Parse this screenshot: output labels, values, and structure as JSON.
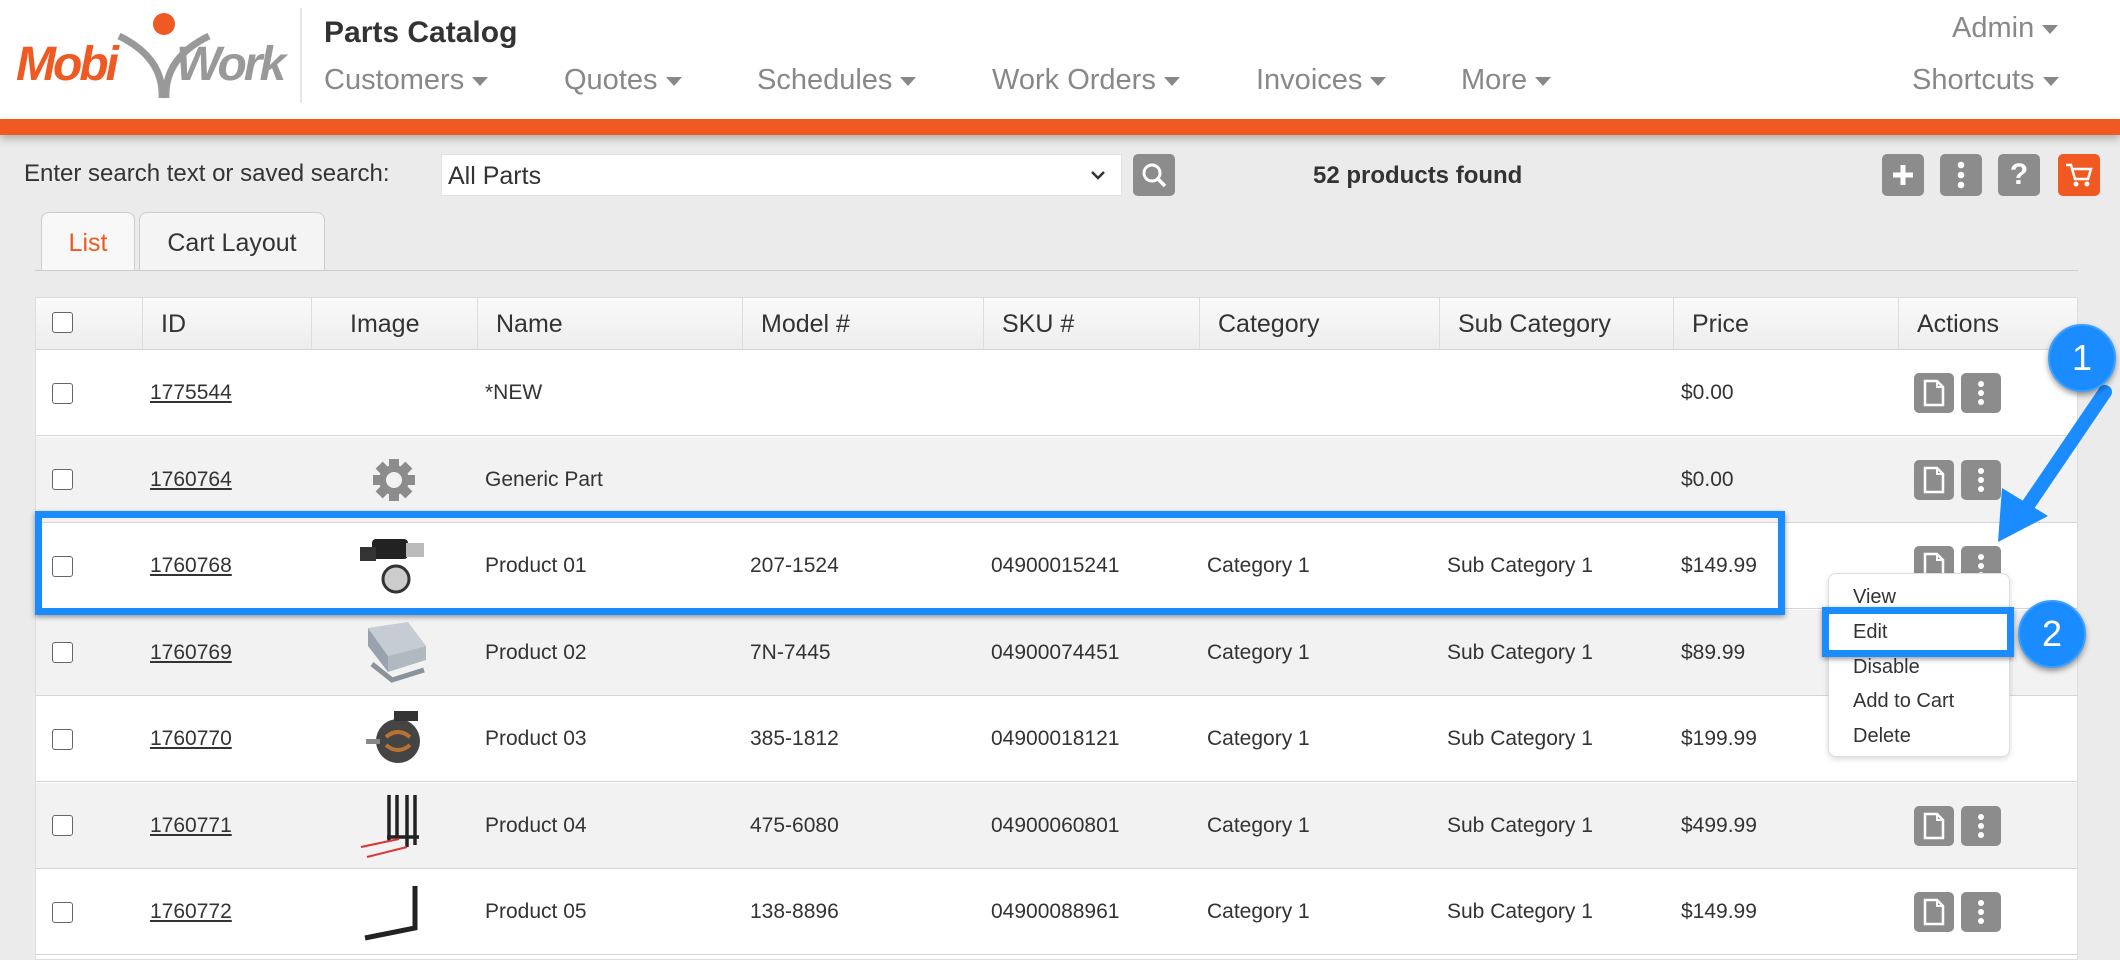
{
  "app": {
    "logo": "MobiWork",
    "title": "Parts Catalog",
    "accent": "#f05a22",
    "annotation_color": "#1a8cff"
  },
  "nav": [
    {
      "label": "Customers"
    },
    {
      "label": "Quotes"
    },
    {
      "label": "Schedules"
    },
    {
      "label": "Work Orders"
    },
    {
      "label": "Invoices"
    },
    {
      "label": "More"
    }
  ],
  "user_menu": {
    "admin": "Admin",
    "shortcuts": "Shortcuts"
  },
  "search": {
    "label": "Enter search text or saved search:",
    "value": "All Parts",
    "results": "52 products found"
  },
  "toolbar_icons": [
    "plus-icon",
    "kebab-icon",
    "help-icon",
    "cart-icon"
  ],
  "tabs": [
    {
      "label": "List",
      "active": true
    },
    {
      "label": "Cart Layout",
      "active": false
    }
  ],
  "table": {
    "columns": [
      "ID",
      "Image",
      "Name",
      "Model #",
      "SKU #",
      "Category",
      "Sub Category",
      "Price",
      "Actions"
    ],
    "rows": [
      {
        "id": "1775544",
        "image": "none",
        "name": "*NEW",
        "model": "",
        "sku": "",
        "category": "",
        "subcategory": "",
        "price": "$0.00"
      },
      {
        "id": "1760764",
        "image": "gear",
        "name": "Generic Part",
        "model": "",
        "sku": "",
        "category": "",
        "subcategory": "",
        "price": "$0.00"
      },
      {
        "id": "1760768",
        "image": "starter",
        "name": "Product 01",
        "model": "207-1524",
        "sku": "04900015241",
        "category": "Category 1",
        "subcategory": "Sub Category 1",
        "price": "$149.99"
      },
      {
        "id": "1760769",
        "image": "block",
        "name": "Product 02",
        "model": "7N-7445",
        "sku": "04900074451",
        "category": "Category 1",
        "subcategory": "Sub Category 1",
        "price": "$89.99"
      },
      {
        "id": "1760770",
        "image": "alternator",
        "name": "Product 03",
        "model": "385-1812",
        "sku": "04900018121",
        "category": "Category 1",
        "subcategory": "Sub Category 1",
        "price": "$199.99"
      },
      {
        "id": "1760771",
        "image": "fork-frame",
        "name": "Product 04",
        "model": "475-6080",
        "sku": "04900060801",
        "category": "Category 1",
        "subcategory": "Sub Category 1",
        "price": "$499.99"
      },
      {
        "id": "1760772",
        "image": "fork",
        "name": "Product 05",
        "model": "138-8896",
        "sku": "04900088961",
        "category": "Category 1",
        "subcategory": "Sub Category 1",
        "price": "$149.99"
      }
    ]
  },
  "context_menu": {
    "items": [
      "View",
      "Edit",
      "Disable",
      "Add to Cart",
      "Delete"
    ],
    "highlighted": "Edit"
  },
  "annotations": {
    "step1": "1",
    "step2": "2"
  }
}
